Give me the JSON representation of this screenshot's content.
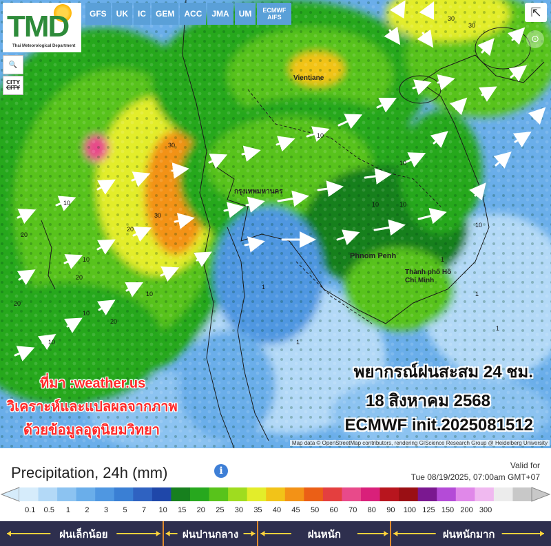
{
  "logo": {
    "letters": "TMD",
    "subtitle": "Thai Meteorological Department"
  },
  "map_controls": [
    {
      "name": "zoom-button",
      "label": "🔍"
    },
    {
      "name": "city-toggle",
      "label": "CITY"
    }
  ],
  "models": [
    "GFS",
    "UK",
    "IC",
    "GEM",
    "ACC",
    "JMA",
    "UM",
    "ECMWF AIFS"
  ],
  "places": [
    "กรุงเทพมหานคร",
    "Phnom Penh",
    "Thành phố Hồ Chí Minh",
    "Vientiane"
  ],
  "source_credit": [
    "ที่มา :weather.us",
    "วิเคราะห์และแปลผลจากภาพ",
    "ด้วยข้อมูลอุตุนิยมวิทยา"
  ],
  "forecast_caption": [
    "พยากรณ์ฝนสะสม 24 ชม.",
    "18 สิงหาคม 2568",
    "ECMWF init.2025081512"
  ],
  "attribution": "Map data © OpenStreetMap contributors, rendering GIScience Research Group @ Heidelberg University",
  "legend": {
    "title": "Precipitation, 24h (mm)",
    "info_icon": "i",
    "valid_label": "Valid for",
    "valid_time": "Tue 08/19/2025, 07:00am GMT+07",
    "ticks": [
      "0.1",
      "0.5",
      "1",
      "2",
      "3",
      "5",
      "7",
      "10",
      "15",
      "20",
      "25",
      "30",
      "35",
      "40",
      "45",
      "50",
      "60",
      "70",
      "80",
      "90",
      "100",
      "125",
      "150",
      "200",
      "300"
    ],
    "colors": [
      "#d6ecfb",
      "#b3d9f7",
      "#8cc3f1",
      "#6aaeea",
      "#4f97e1",
      "#3a7fd4",
      "#2f62c1",
      "#1f47a9",
      "#17801e",
      "#27a81e",
      "#58c31b",
      "#9fdc1f",
      "#e3ed2a",
      "#f2c318",
      "#f39216",
      "#eb5f16",
      "#e43f3f",
      "#e84a8a",
      "#d9207a",
      "#b8151e",
      "#9a0f14",
      "#7a1890",
      "#b44bd7",
      "#e088e9",
      "#f0b9f0",
      "#ececec",
      "#c8c8c8"
    ],
    "categories": [
      {
        "label": "ฝนเล็กน้อย",
        "from": "0.1",
        "to": "10"
      },
      {
        "label": "ฝนปานกลาง",
        "from": "10",
        "to": "35"
      },
      {
        "label": "ฝนหนัก",
        "from": "35",
        "to": "90"
      },
      {
        "label": "ฝนหนักมาก",
        "from": "90",
        "to": "300"
      }
    ]
  },
  "icons": {
    "share": "share-icon",
    "lens": "lens-icon",
    "wind": "wind-arrow-icon"
  }
}
